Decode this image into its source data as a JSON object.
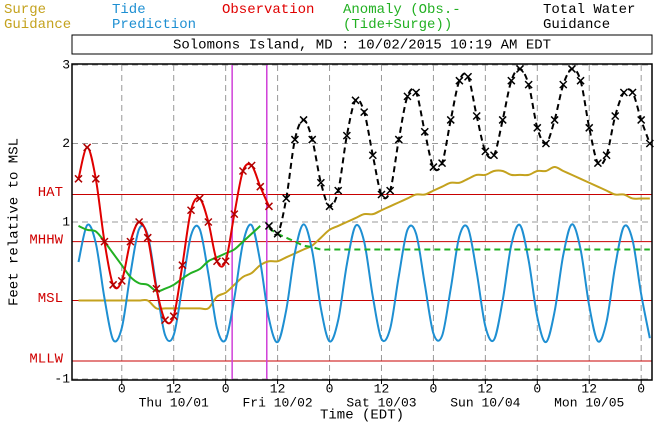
{
  "chart_data": {
    "type": "line",
    "title": "Solomons Island, MD : 10/02/2015 10:19 AM EDT",
    "ylabel": "Feet relative to MSL",
    "xlabel": "Time (EDT)",
    "x": [
      -10,
      -8,
      -6,
      -4,
      -2,
      0,
      2,
      4,
      6,
      8,
      10,
      12,
      14,
      16,
      18,
      20,
      22,
      24,
      26,
      28,
      30,
      32,
      34,
      36,
      38,
      40,
      42,
      44,
      46,
      48,
      50,
      52,
      54,
      56,
      58,
      60,
      62,
      64,
      66,
      68,
      70,
      72,
      74,
      76,
      78,
      80,
      82,
      84,
      86,
      88,
      90,
      92,
      94,
      96,
      98,
      100,
      102,
      104,
      106,
      108,
      110,
      112,
      114,
      116,
      118,
      120,
      122
    ],
    "xlim": [
      -11.5,
      122.5
    ],
    "xticks": [
      0,
      12,
      {
        "value": 24,
        "label": "0"
      },
      {
        "value": 36,
        "label": "12"
      },
      {
        "value": 48,
        "label": "0"
      },
      {
        "value": 60,
        "label": "12"
      },
      {
        "value": 72,
        "label": "0"
      },
      {
        "value": 84,
        "label": "12"
      },
      {
        "value": 96,
        "label": "0"
      },
      {
        "value": 108,
        "label": "12"
      },
      {
        "value": 120,
        "label": "0"
      }
    ],
    "day_labels": [
      {
        "value": 12,
        "label": "Thu 10/01"
      },
      {
        "value": 36,
        "label": "Fri 10/02"
      },
      {
        "value": 60,
        "label": "Sat 10/03"
      },
      {
        "value": 84,
        "label": "Sun 10/04"
      },
      {
        "value": 108,
        "label": "Mon 10/05"
      }
    ],
    "ylim": [
      -1,
      3
    ],
    "yticks": [
      -1,
      1,
      2,
      3
    ],
    "grid": true,
    "datums": [
      {
        "label": "HAT",
        "value": 1.35
      },
      {
        "label": "MHHW",
        "value": 0.75
      },
      {
        "label": "MSL",
        "value": 0
      },
      {
        "label": "MLLW",
        "value": -0.77
      }
    ],
    "markers": [
      25.5,
      33.5
    ],
    "series": [
      {
        "name": "Surge Guidance",
        "color": "#c4a21e",
        "style": "solid",
        "values": [
          0,
          0,
          0,
          0,
          0,
          0,
          0,
          0,
          0,
          -0.1,
          -0.1,
          -0.1,
          -0.1,
          -0.1,
          -0.1,
          -0.1,
          0.05,
          0.1,
          0.2,
          0.3,
          0.35,
          0.45,
          0.5,
          0.5,
          0.55,
          0.6,
          0.65,
          0.7,
          0.8,
          0.9,
          0.95,
          1,
          1.05,
          1.1,
          1.1,
          1.15,
          1.2,
          1.25,
          1.3,
          1.35,
          1.35,
          1.4,
          1.45,
          1.5,
          1.5,
          1.55,
          1.6,
          1.6,
          1.65,
          1.65,
          1.6,
          1.6,
          1.6,
          1.65,
          1.65,
          1.7,
          1.65,
          1.6,
          1.55,
          1.5,
          1.45,
          1.4,
          1.35,
          1.35,
          1.3,
          1.3,
          1.3
        ]
      },
      {
        "name": "Tide Prediction",
        "color": "#1e8fd2",
        "style": "solid",
        "values": [
          0.49,
          0.96,
          0.73,
          0.03,
          -0.5,
          -0.35,
          0.34,
          0.91,
          0.83,
          0.18,
          -0.44,
          -0.44,
          0.18,
          0.83,
          0.91,
          0.34,
          -0.35,
          -0.5,
          0.03,
          0.73,
          0.96,
          0.49,
          -0.23,
          -0.53,
          -0.12,
          0.61,
          0.97,
          0.63,
          -0.1,
          -0.52,
          -0.25,
          0.46,
          0.95,
          0.75,
          0.05,
          -0.49,
          -0.36,
          0.31,
          0.9,
          0.85,
          0.21,
          -0.42,
          -0.45,
          0.15,
          0.82,
          0.92,
          0.36,
          -0.33,
          -0.5,
          0,
          0.71,
          0.96,
          0.51,
          -0.21,
          -0.53,
          -0.14,
          0.58,
          0.97,
          0.65,
          -0.07,
          -0.52,
          -0.27,
          0.44,
          0.94,
          0.77,
          0.08,
          -0.48
        ]
      },
      {
        "name": "Observation",
        "color": "#e00000",
        "style": "solid",
        "marker": "x",
        "values": [
          1.55,
          1.95,
          1.55,
          0.75,
          0.2,
          0.25,
          0.75,
          1,
          0.8,
          0.15,
          -0.25,
          -0.2,
          0.45,
          1.15,
          1.3,
          1,
          0.5,
          0.5,
          1.1,
          1.65,
          1.72,
          1.45,
          1.2,
          null,
          null,
          null,
          null,
          null,
          null,
          null,
          null,
          null,
          null,
          null,
          null,
          null,
          null,
          null,
          null,
          null,
          null,
          null,
          null,
          null,
          null,
          null,
          null,
          null,
          null,
          null,
          null,
          null,
          null,
          null,
          null,
          null,
          null,
          null,
          null,
          null,
          null,
          null,
          null,
          null,
          null,
          null,
          null
        ]
      },
      {
        "name": "Anomaly (Obs.-(Tide+Surge))",
        "color": "#22b022",
        "style": "solid-then-dashed",
        "values": [
          0.95,
          0.9,
          0.88,
          0.75,
          0.6,
          0.45,
          0.3,
          0.22,
          0.2,
          0.12,
          0.15,
          0.2,
          0.28,
          0.35,
          0.4,
          0.5,
          0.55,
          0.6,
          0.65,
          0.75,
          0.85,
          0.95,
          0.92,
          0.85,
          0.8,
          0.75,
          0.7,
          0.68,
          0.65,
          0.65,
          0.65,
          0.65,
          0.65,
          0.65,
          0.65,
          0.65,
          0.65,
          0.65,
          0.65,
          0.65,
          0.65,
          0.65,
          0.65,
          0.65,
          0.65,
          0.65,
          0.65,
          0.65,
          0.65,
          0.65,
          0.65,
          0.65,
          0.65,
          0.65,
          0.65,
          0.65,
          0.65,
          0.65,
          0.65,
          0.65,
          0.65,
          0.65,
          0.65,
          0.65,
          0.65,
          0.65,
          0.65
        ]
      },
      {
        "name": "Total Water Guidance",
        "color": "#000000",
        "style": "dashed",
        "marker": "x",
        "values": [
          null,
          null,
          null,
          null,
          null,
          null,
          null,
          null,
          null,
          null,
          null,
          null,
          null,
          null,
          null,
          null,
          null,
          null,
          null,
          null,
          null,
          null,
          0.95,
          0.85,
          1.3,
          2.05,
          2.3,
          2.05,
          1.5,
          1.2,
          1.4,
          2.1,
          2.55,
          2.4,
          1.85,
          1.35,
          1.4,
          2.05,
          2.6,
          2.65,
          2.15,
          1.7,
          1.75,
          2.3,
          2.8,
          2.85,
          2.35,
          1.9,
          1.85,
          2.3,
          2.8,
          2.95,
          2.75,
          2.2,
          2,
          2.3,
          2.75,
          2.95,
          2.8,
          2.2,
          1.75,
          1.85,
          2.35,
          2.65,
          2.65,
          2.3,
          2
        ]
      }
    ]
  }
}
